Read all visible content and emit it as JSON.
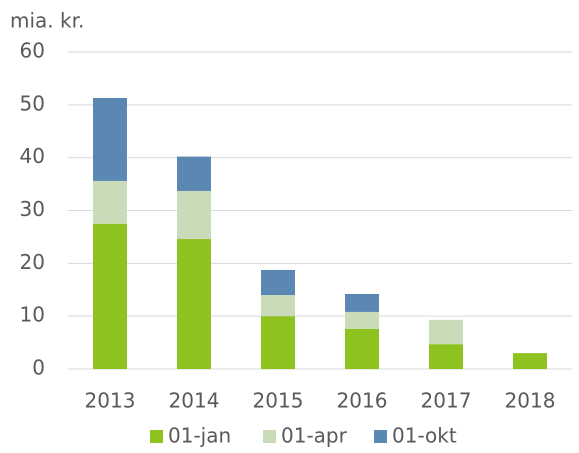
{
  "chart_data": {
    "type": "stacked_bar",
    "y_label": "mia. kr.",
    "categories": [
      "2013",
      "2014",
      "2015",
      "2016",
      "2017",
      "2018"
    ],
    "series": [
      {
        "name": "01-jan",
        "color": "#8dc21f",
        "values": [
          27.5,
          24.6,
          10.0,
          7.6,
          4.7,
          3.0
        ]
      },
      {
        "name": "01-apr",
        "color": "#c9dbb9",
        "values": [
          8.1,
          9.1,
          4.0,
          3.2,
          4.6,
          null
        ]
      },
      {
        "name": "01-okt",
        "color": "#5b87b3",
        "values": [
          15.7,
          6.5,
          4.75,
          3.4,
          null,
          null
        ]
      }
    ],
    "ylim": [
      0,
      60
    ],
    "yticks": [
      0,
      10,
      20,
      30,
      40,
      50,
      60
    ],
    "grid": true,
    "legend": "bottom"
  }
}
